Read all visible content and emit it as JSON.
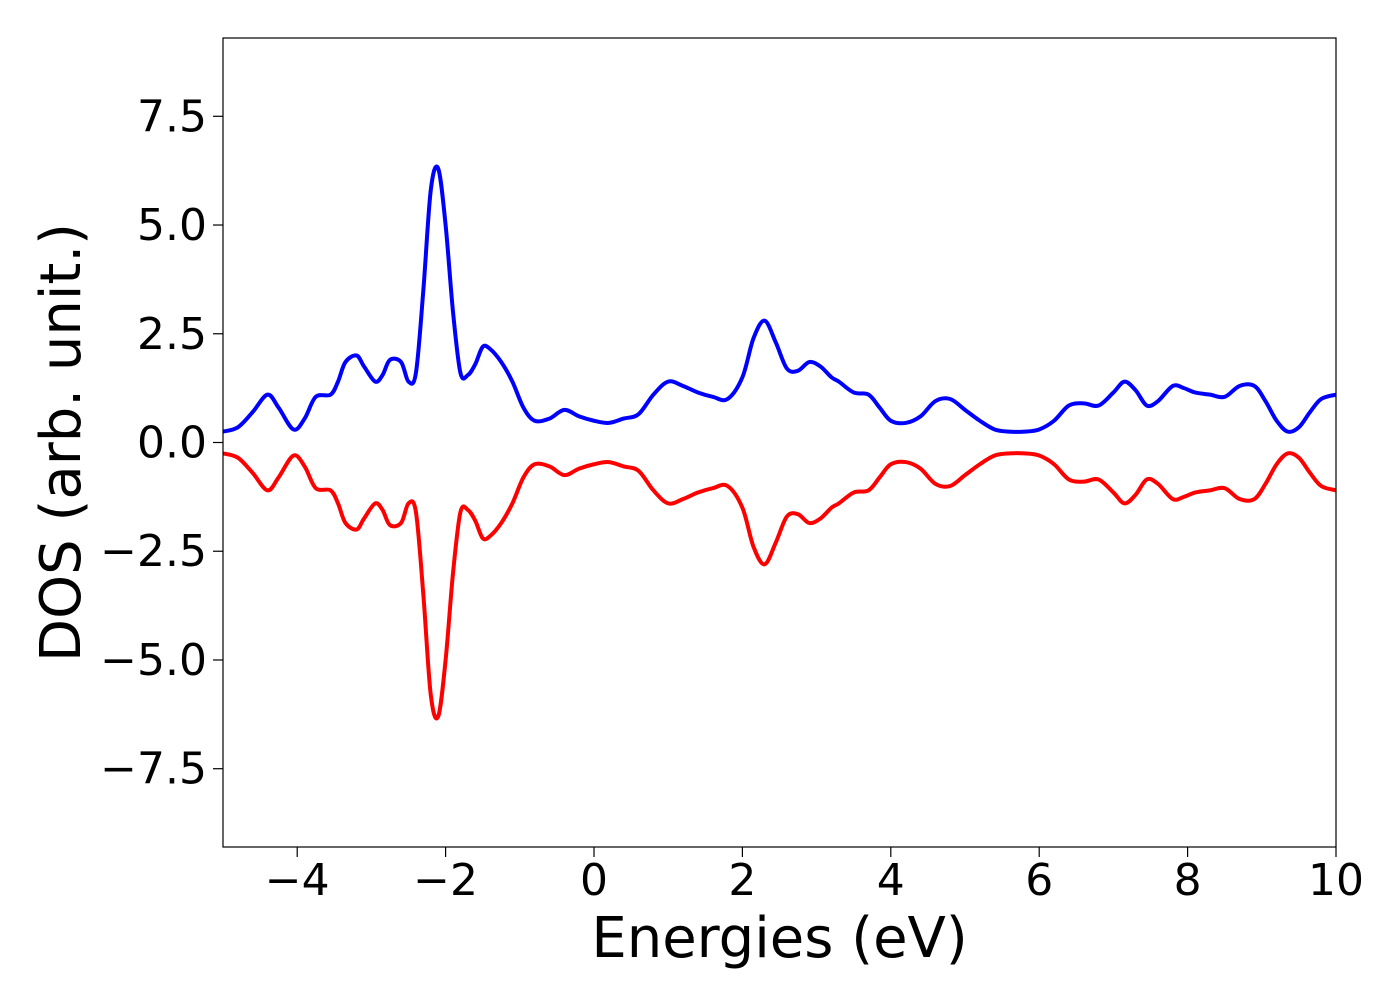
{
  "chart_data": {
    "type": "line",
    "title": "",
    "xlabel": "Energies (eV)",
    "ylabel": "DOS (arb. unit.)",
    "xlim": [
      -5,
      10
    ],
    "ylim": [
      -9.3,
      9.3
    ],
    "grid": false,
    "legend": "none",
    "xticks": [
      -4,
      -2,
      0,
      2,
      4,
      6,
      8,
      10
    ],
    "xtick_labels": [
      "−4",
      "−2",
      "0",
      "2",
      "4",
      "6",
      "8",
      "10"
    ],
    "yticks": [
      7.5,
      5.0,
      2.5,
      0.0,
      -2.5,
      -5.0,
      -7.5
    ],
    "ytick_labels": [
      "7.5",
      "5.0",
      "2.5",
      "0.0",
      "−2.5",
      "−5.0",
      "−7.5"
    ],
    "series": [
      {
        "color": "#0000ff",
        "x": [
          -5.0,
          -4.8,
          -4.6,
          -4.4,
          -4.25,
          -4.05,
          -3.9,
          -3.75,
          -3.55,
          -3.45,
          -3.35,
          -3.2,
          -3.1,
          -2.95,
          -2.85,
          -2.75,
          -2.6,
          -2.5,
          -2.4,
          -2.3,
          -2.2,
          -2.1,
          -2.0,
          -1.9,
          -1.8,
          -1.7,
          -1.6,
          -1.5,
          -1.4,
          -1.25,
          -1.1,
          -0.95,
          -0.8,
          -0.6,
          -0.4,
          -0.2,
          0.0,
          0.2,
          0.4,
          0.6,
          0.8,
          1.0,
          1.2,
          1.4,
          1.6,
          1.8,
          2.0,
          2.15,
          2.3,
          2.45,
          2.6,
          2.75,
          2.9,
          3.05,
          3.2,
          3.3,
          3.5,
          3.7,
          3.85,
          4.0,
          4.2,
          4.4,
          4.6,
          4.8,
          5.0,
          5.2,
          5.4,
          5.6,
          5.8,
          6.0,
          6.2,
          6.4,
          6.6,
          6.8,
          7.0,
          7.15,
          7.3,
          7.45,
          7.6,
          7.8,
          7.95,
          8.1,
          8.3,
          8.5,
          8.7,
          8.9,
          9.05,
          9.2,
          9.35,
          9.5,
          9.65,
          9.8,
          10.0
        ],
        "y": [
          0.25,
          0.35,
          0.7,
          1.1,
          0.8,
          0.3,
          0.55,
          1.05,
          1.1,
          1.4,
          1.85,
          2.0,
          1.75,
          1.4,
          1.55,
          1.9,
          1.85,
          1.4,
          1.6,
          3.5,
          5.8,
          6.3,
          5.0,
          3.0,
          1.6,
          1.55,
          1.8,
          2.2,
          2.15,
          1.85,
          1.4,
          0.8,
          0.5,
          0.55,
          0.75,
          0.6,
          0.5,
          0.45,
          0.55,
          0.65,
          1.1,
          1.4,
          1.3,
          1.15,
          1.05,
          1.0,
          1.5,
          2.4,
          2.8,
          2.3,
          1.7,
          1.65,
          1.85,
          1.75,
          1.5,
          1.4,
          1.15,
          1.1,
          0.8,
          0.5,
          0.45,
          0.6,
          0.95,
          1.0,
          0.75,
          0.5,
          0.3,
          0.25,
          0.25,
          0.3,
          0.5,
          0.85,
          0.9,
          0.85,
          1.15,
          1.4,
          1.2,
          0.85,
          0.95,
          1.3,
          1.25,
          1.15,
          1.1,
          1.05,
          1.3,
          1.3,
          0.95,
          0.5,
          0.25,
          0.35,
          0.7,
          1.0,
          1.1
        ]
      },
      {
        "color": "#ff0000",
        "x": [
          -5.0,
          -4.8,
          -4.6,
          -4.4,
          -4.25,
          -4.05,
          -3.9,
          -3.75,
          -3.55,
          -3.45,
          -3.35,
          -3.2,
          -3.1,
          -2.95,
          -2.85,
          -2.75,
          -2.6,
          -2.5,
          -2.4,
          -2.3,
          -2.2,
          -2.1,
          -2.0,
          -1.9,
          -1.8,
          -1.7,
          -1.6,
          -1.5,
          -1.4,
          -1.25,
          -1.1,
          -0.95,
          -0.8,
          -0.6,
          -0.4,
          -0.2,
          0.0,
          0.2,
          0.4,
          0.6,
          0.8,
          1.0,
          1.2,
          1.4,
          1.6,
          1.8,
          2.0,
          2.15,
          2.3,
          2.45,
          2.6,
          2.75,
          2.9,
          3.05,
          3.2,
          3.3,
          3.5,
          3.7,
          3.85,
          4.0,
          4.2,
          4.4,
          4.6,
          4.8,
          5.0,
          5.2,
          5.4,
          5.6,
          5.8,
          6.0,
          6.2,
          6.4,
          6.6,
          6.8,
          7.0,
          7.15,
          7.3,
          7.45,
          7.6,
          7.8,
          7.95,
          8.1,
          8.3,
          8.5,
          8.7,
          8.9,
          9.05,
          9.2,
          9.35,
          9.5,
          9.65,
          9.8,
          10.0
        ],
        "y": [
          -0.25,
          -0.35,
          -0.7,
          -1.1,
          -0.8,
          -0.3,
          -0.55,
          -1.05,
          -1.1,
          -1.4,
          -1.85,
          -2.0,
          -1.75,
          -1.4,
          -1.55,
          -1.9,
          -1.85,
          -1.4,
          -1.6,
          -3.5,
          -5.8,
          -6.3,
          -5.0,
          -3.0,
          -1.6,
          -1.55,
          -1.8,
          -2.2,
          -2.15,
          -1.85,
          -1.4,
          -0.8,
          -0.5,
          -0.55,
          -0.75,
          -0.6,
          -0.5,
          -0.45,
          -0.55,
          -0.65,
          -1.1,
          -1.4,
          -1.3,
          -1.15,
          -1.05,
          -1.0,
          -1.5,
          -2.4,
          -2.8,
          -2.3,
          -1.7,
          -1.65,
          -1.85,
          -1.75,
          -1.5,
          -1.4,
          -1.15,
          -1.1,
          -0.8,
          -0.5,
          -0.45,
          -0.6,
          -0.95,
          -1.0,
          -0.75,
          -0.5,
          -0.3,
          -0.25,
          -0.25,
          -0.3,
          -0.5,
          -0.85,
          -0.9,
          -0.85,
          -1.15,
          -1.4,
          -1.2,
          -0.85,
          -0.95,
          -1.3,
          -1.25,
          -1.15,
          -1.1,
          -1.05,
          -1.3,
          -1.3,
          -0.95,
          -0.5,
          -0.25,
          -0.35,
          -0.7,
          -1.0,
          -1.1
        ]
      }
    ]
  }
}
